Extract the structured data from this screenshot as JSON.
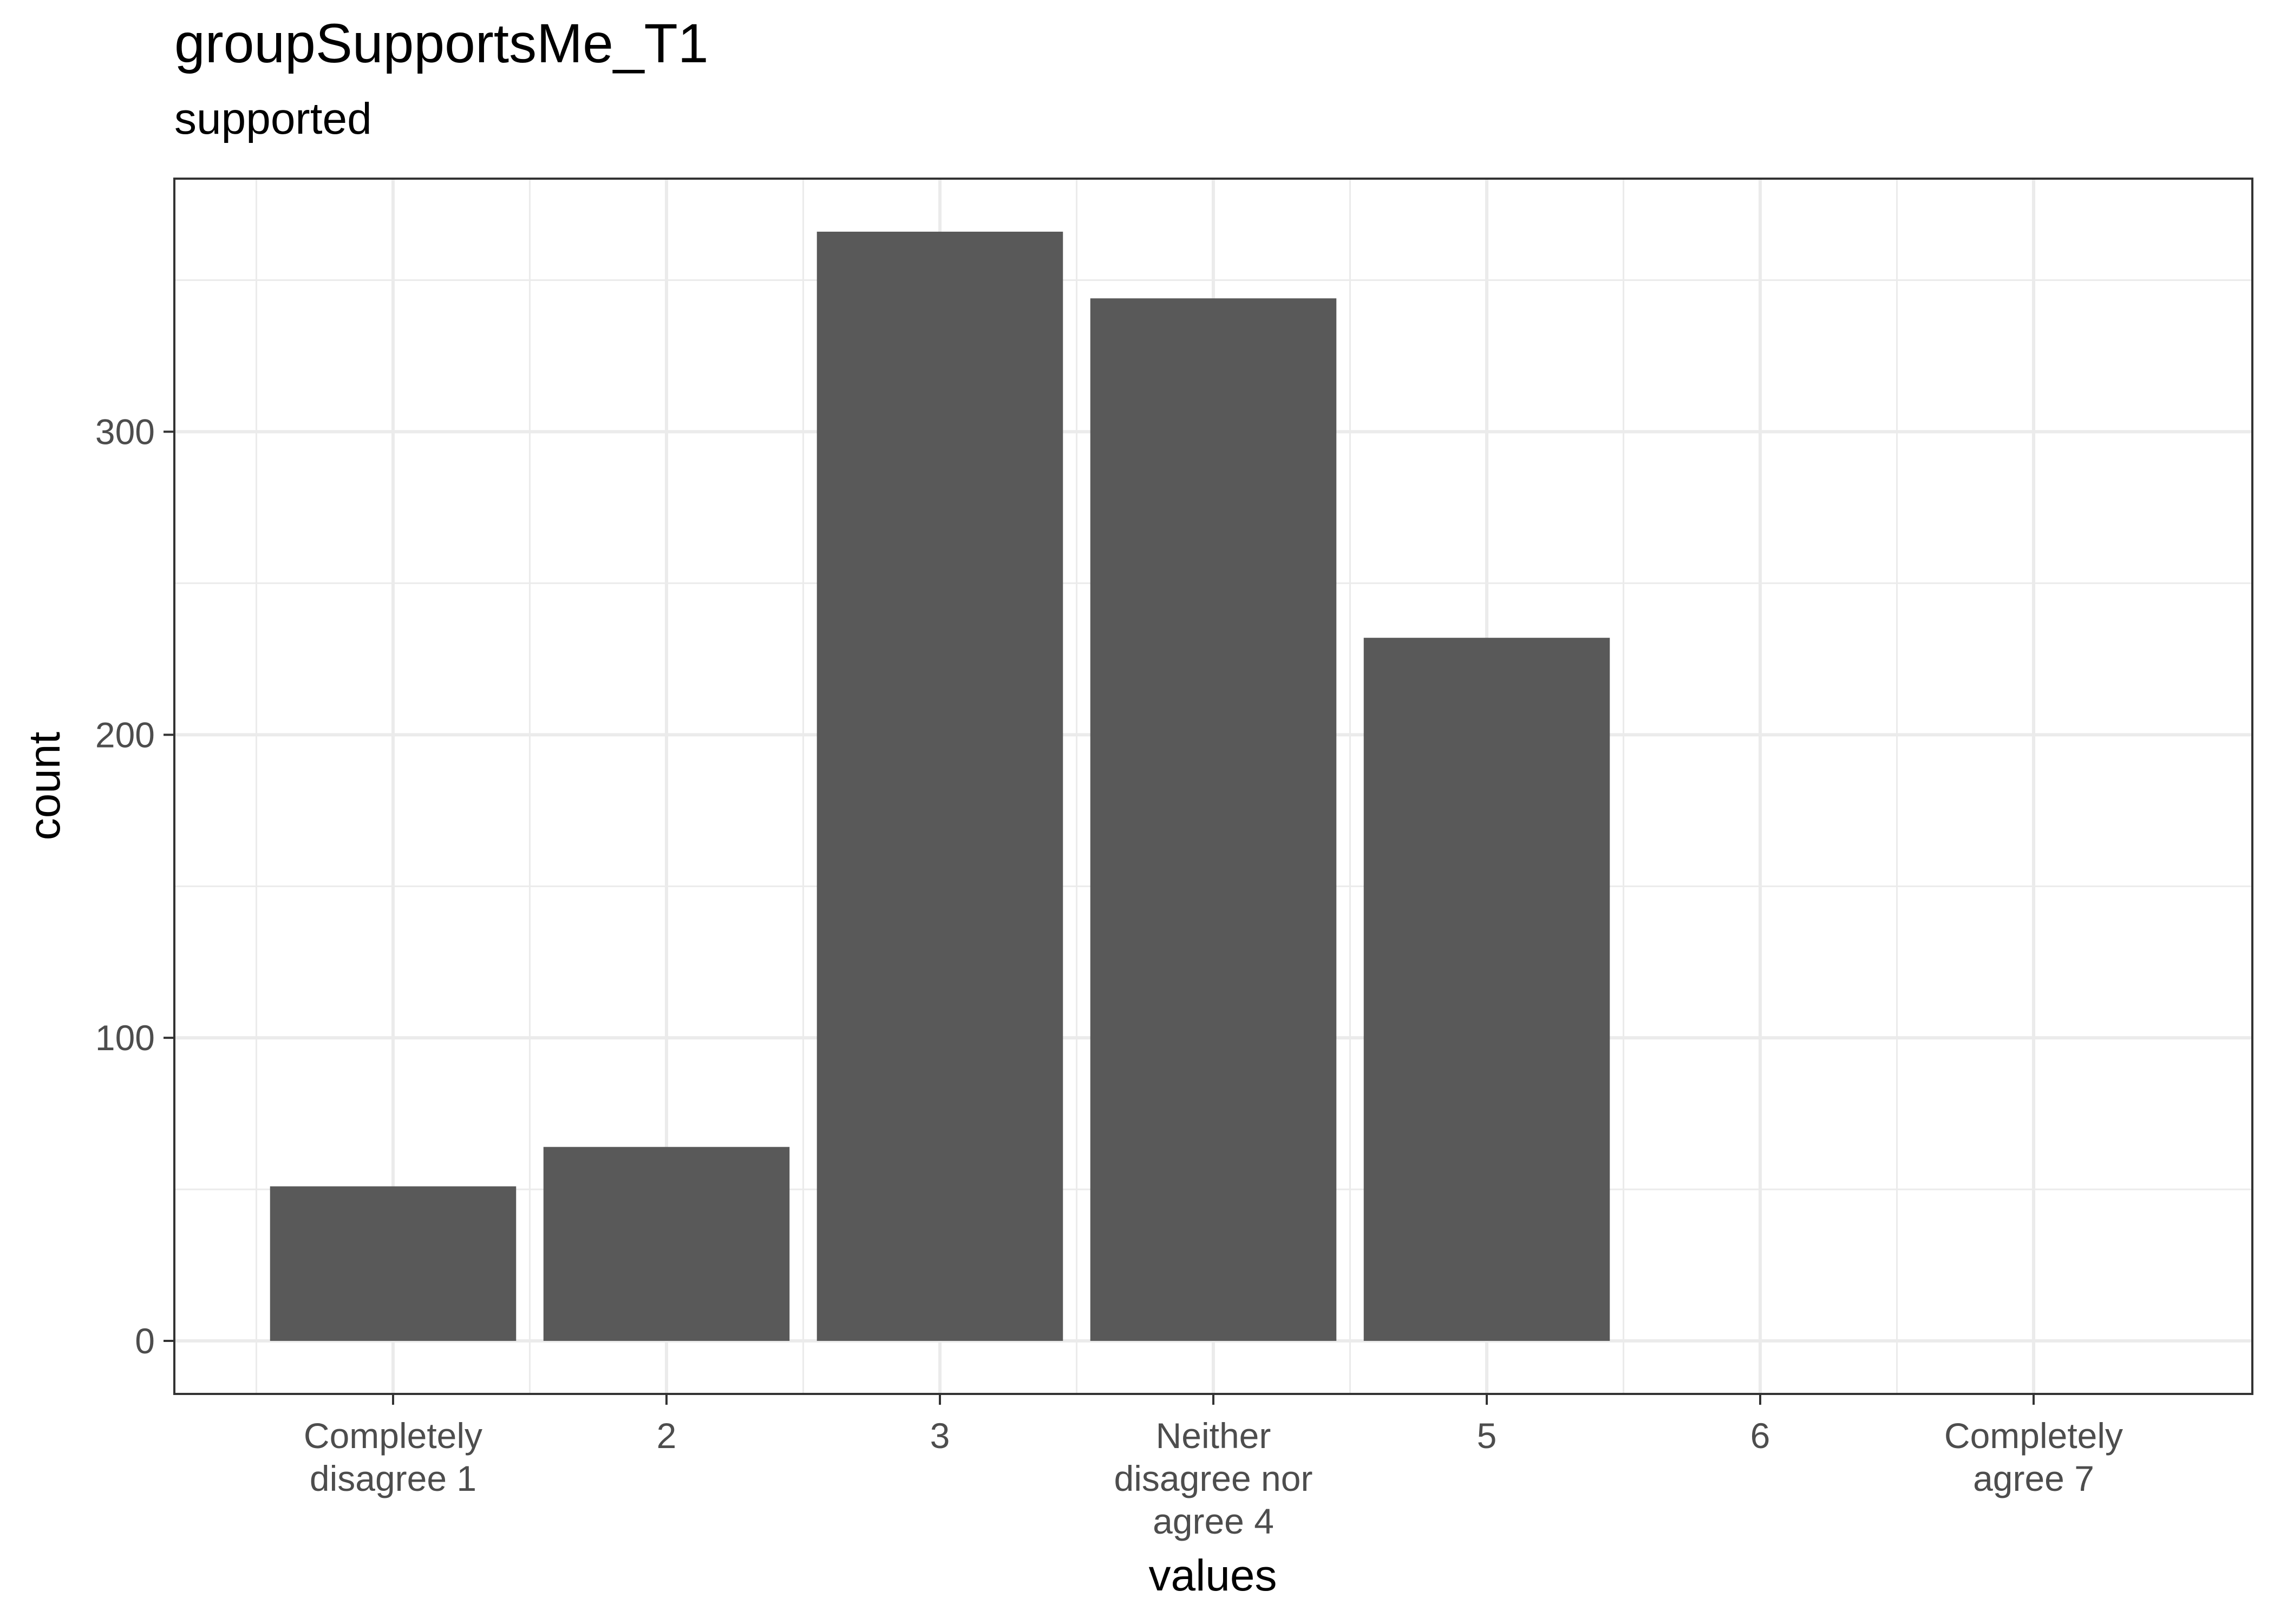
{
  "chart_data": {
    "type": "bar",
    "title": "groupSupportsMe_T1",
    "subtitle": "supported",
    "xlabel": "values",
    "ylabel": "count",
    "categories": [
      [
        "Completely",
        "disagree 1"
      ],
      [
        "2"
      ],
      [
        "3"
      ],
      [
        "Neither",
        "disagree nor",
        "agree 4"
      ],
      [
        "5"
      ],
      [
        "6"
      ],
      [
        "Completely",
        "agree 7"
      ]
    ],
    "values": [
      51,
      64,
      366,
      344,
      232,
      0,
      0
    ],
    "yticks": [
      0,
      100,
      200,
      300
    ],
    "ylim": [
      -17.5,
      383.5
    ],
    "grid": true,
    "colors": {
      "bar": "#595959",
      "grid": "#ebebeb",
      "panel_border": "#333333",
      "tick_label": "#4d4d4d",
      "axis_tick": "#333333"
    }
  }
}
